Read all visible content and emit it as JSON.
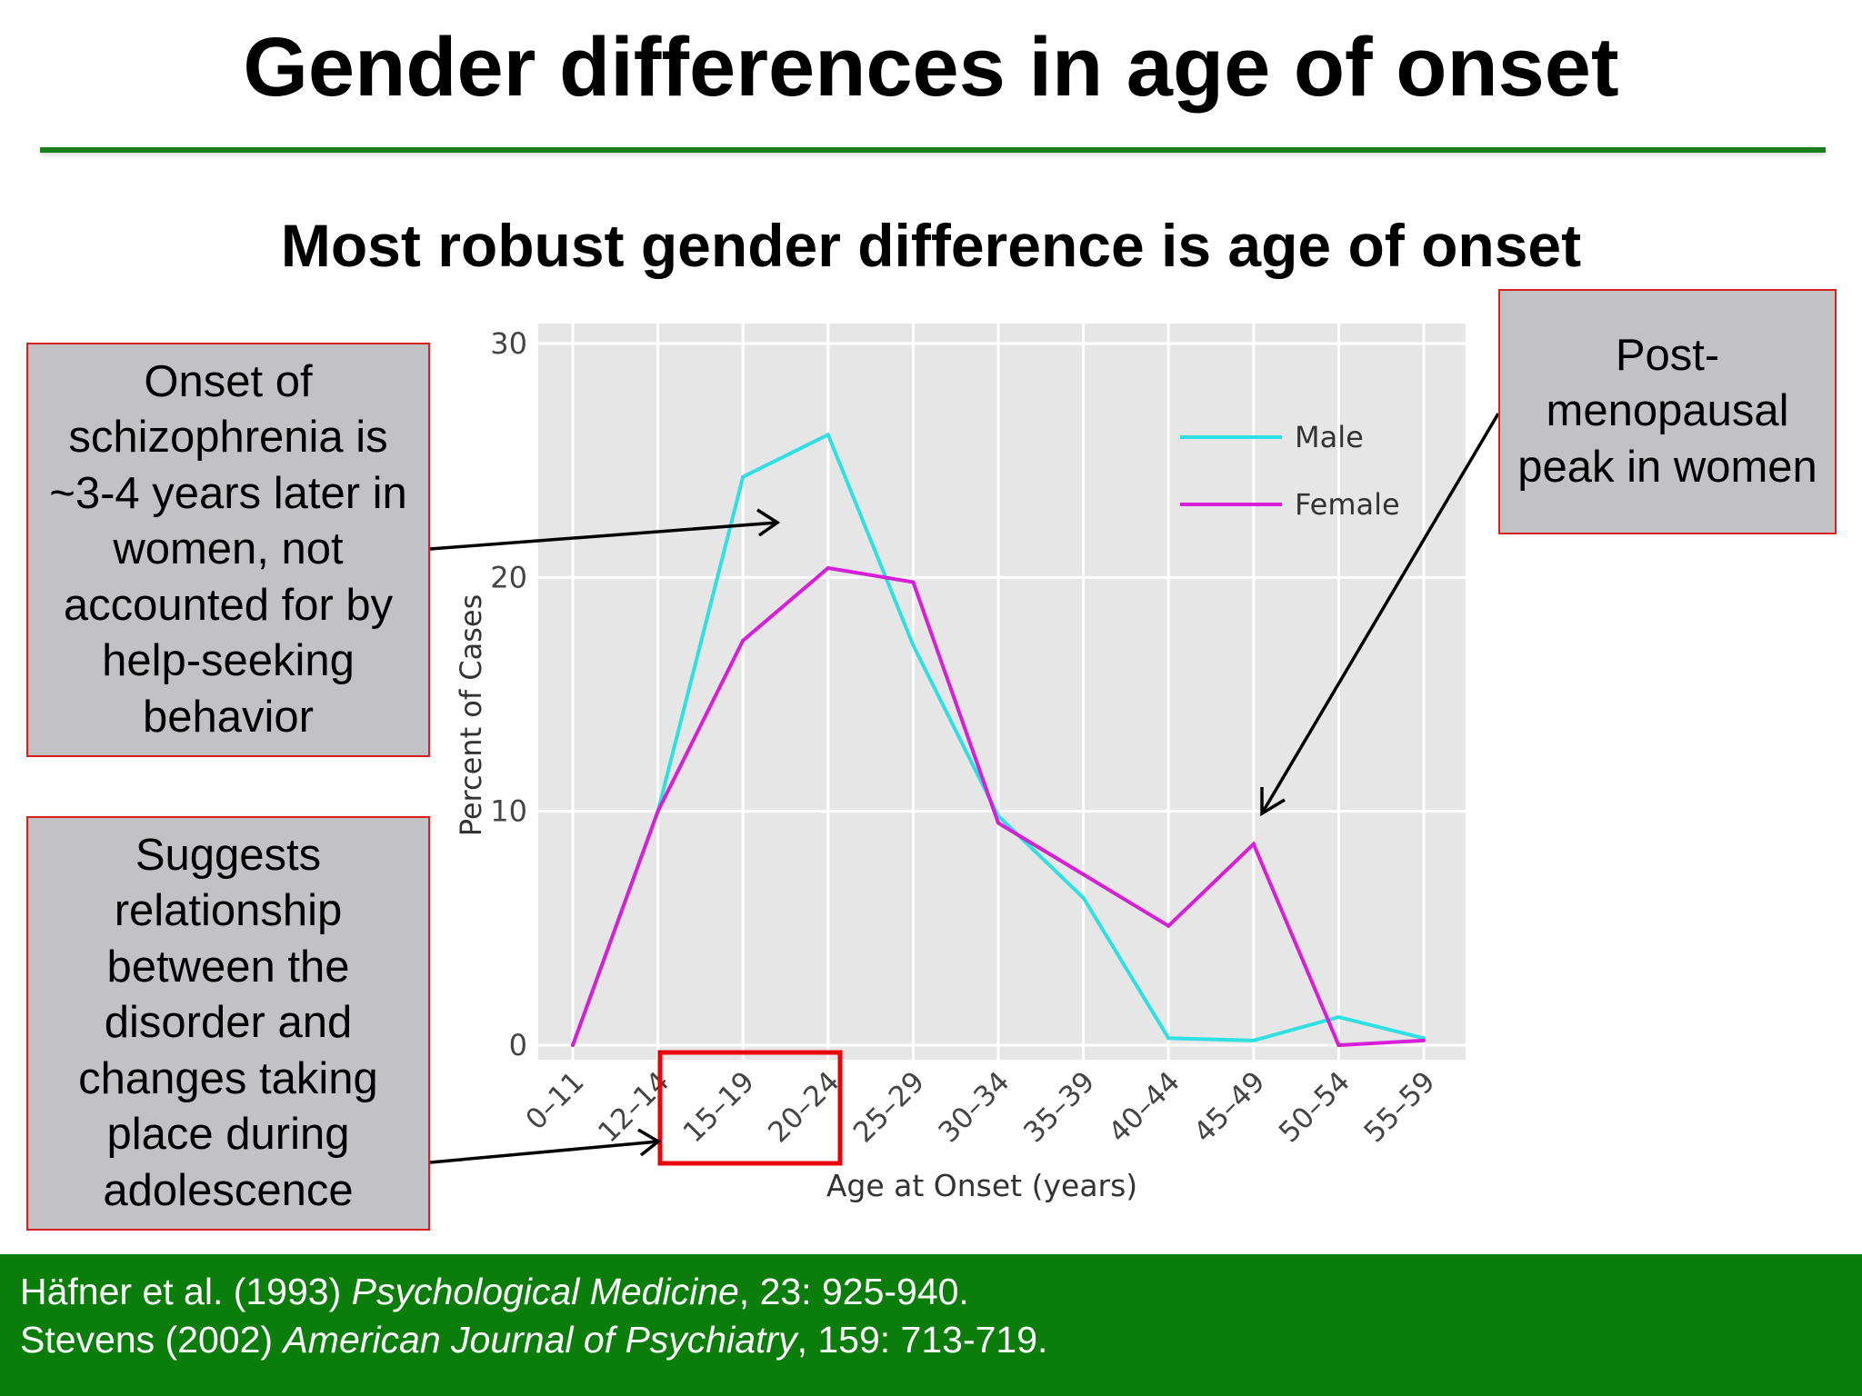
{
  "slide": {
    "title": "Gender differences in age of onset",
    "subtitle": "Most robust gender difference is age of onset",
    "accent_color": "#1b7d1b",
    "footer_color": "#0a7d0a",
    "highlight_color": "#e8000b"
  },
  "callouts": {
    "onset": "Onset of schizophrenia is ~3-4 years later in women, not accounted for by help-seeking behavior",
    "adolescence": "Suggests relationship between the disorder and changes taking place during adolescence",
    "postmenopausal": "Post-menopausal peak in women"
  },
  "references": [
    {
      "pre": "Häfner et al. (1993) ",
      "journal": "Psychological Medicine",
      "post": ", 23: 925-940."
    },
    {
      "pre": "Stevens (2002) ",
      "journal": "American Journal of Psychiatry",
      "post": ", 159: 713-719."
    }
  ],
  "chart_data": {
    "type": "line",
    "xlabel": "Age at Onset (years)",
    "ylabel": "Percent of Cases",
    "categories": [
      "0–11",
      "12–14",
      "15–19",
      "20–24",
      "25–29",
      "30–34",
      "35–39",
      "40–44",
      "45–49",
      "50–54",
      "55–59"
    ],
    "ylim": [
      0,
      30
    ],
    "yticks": [
      0,
      10,
      20,
      30
    ],
    "grid": true,
    "legend": "top-right",
    "highlighted_categories": [
      "15–19",
      "20–24"
    ],
    "series": [
      {
        "name": "Male",
        "color": "#2fe0e3",
        "values": [
          0,
          10,
          24.3,
          26.1,
          17.1,
          9.8,
          6.3,
          0.3,
          0.2,
          1.2,
          0.3
        ]
      },
      {
        "name": "Female",
        "color": "#d61fd6",
        "values": [
          0,
          10,
          17.3,
          20.4,
          19.8,
          9.5,
          7.3,
          5.1,
          8.6,
          0,
          0.2
        ]
      }
    ]
  }
}
